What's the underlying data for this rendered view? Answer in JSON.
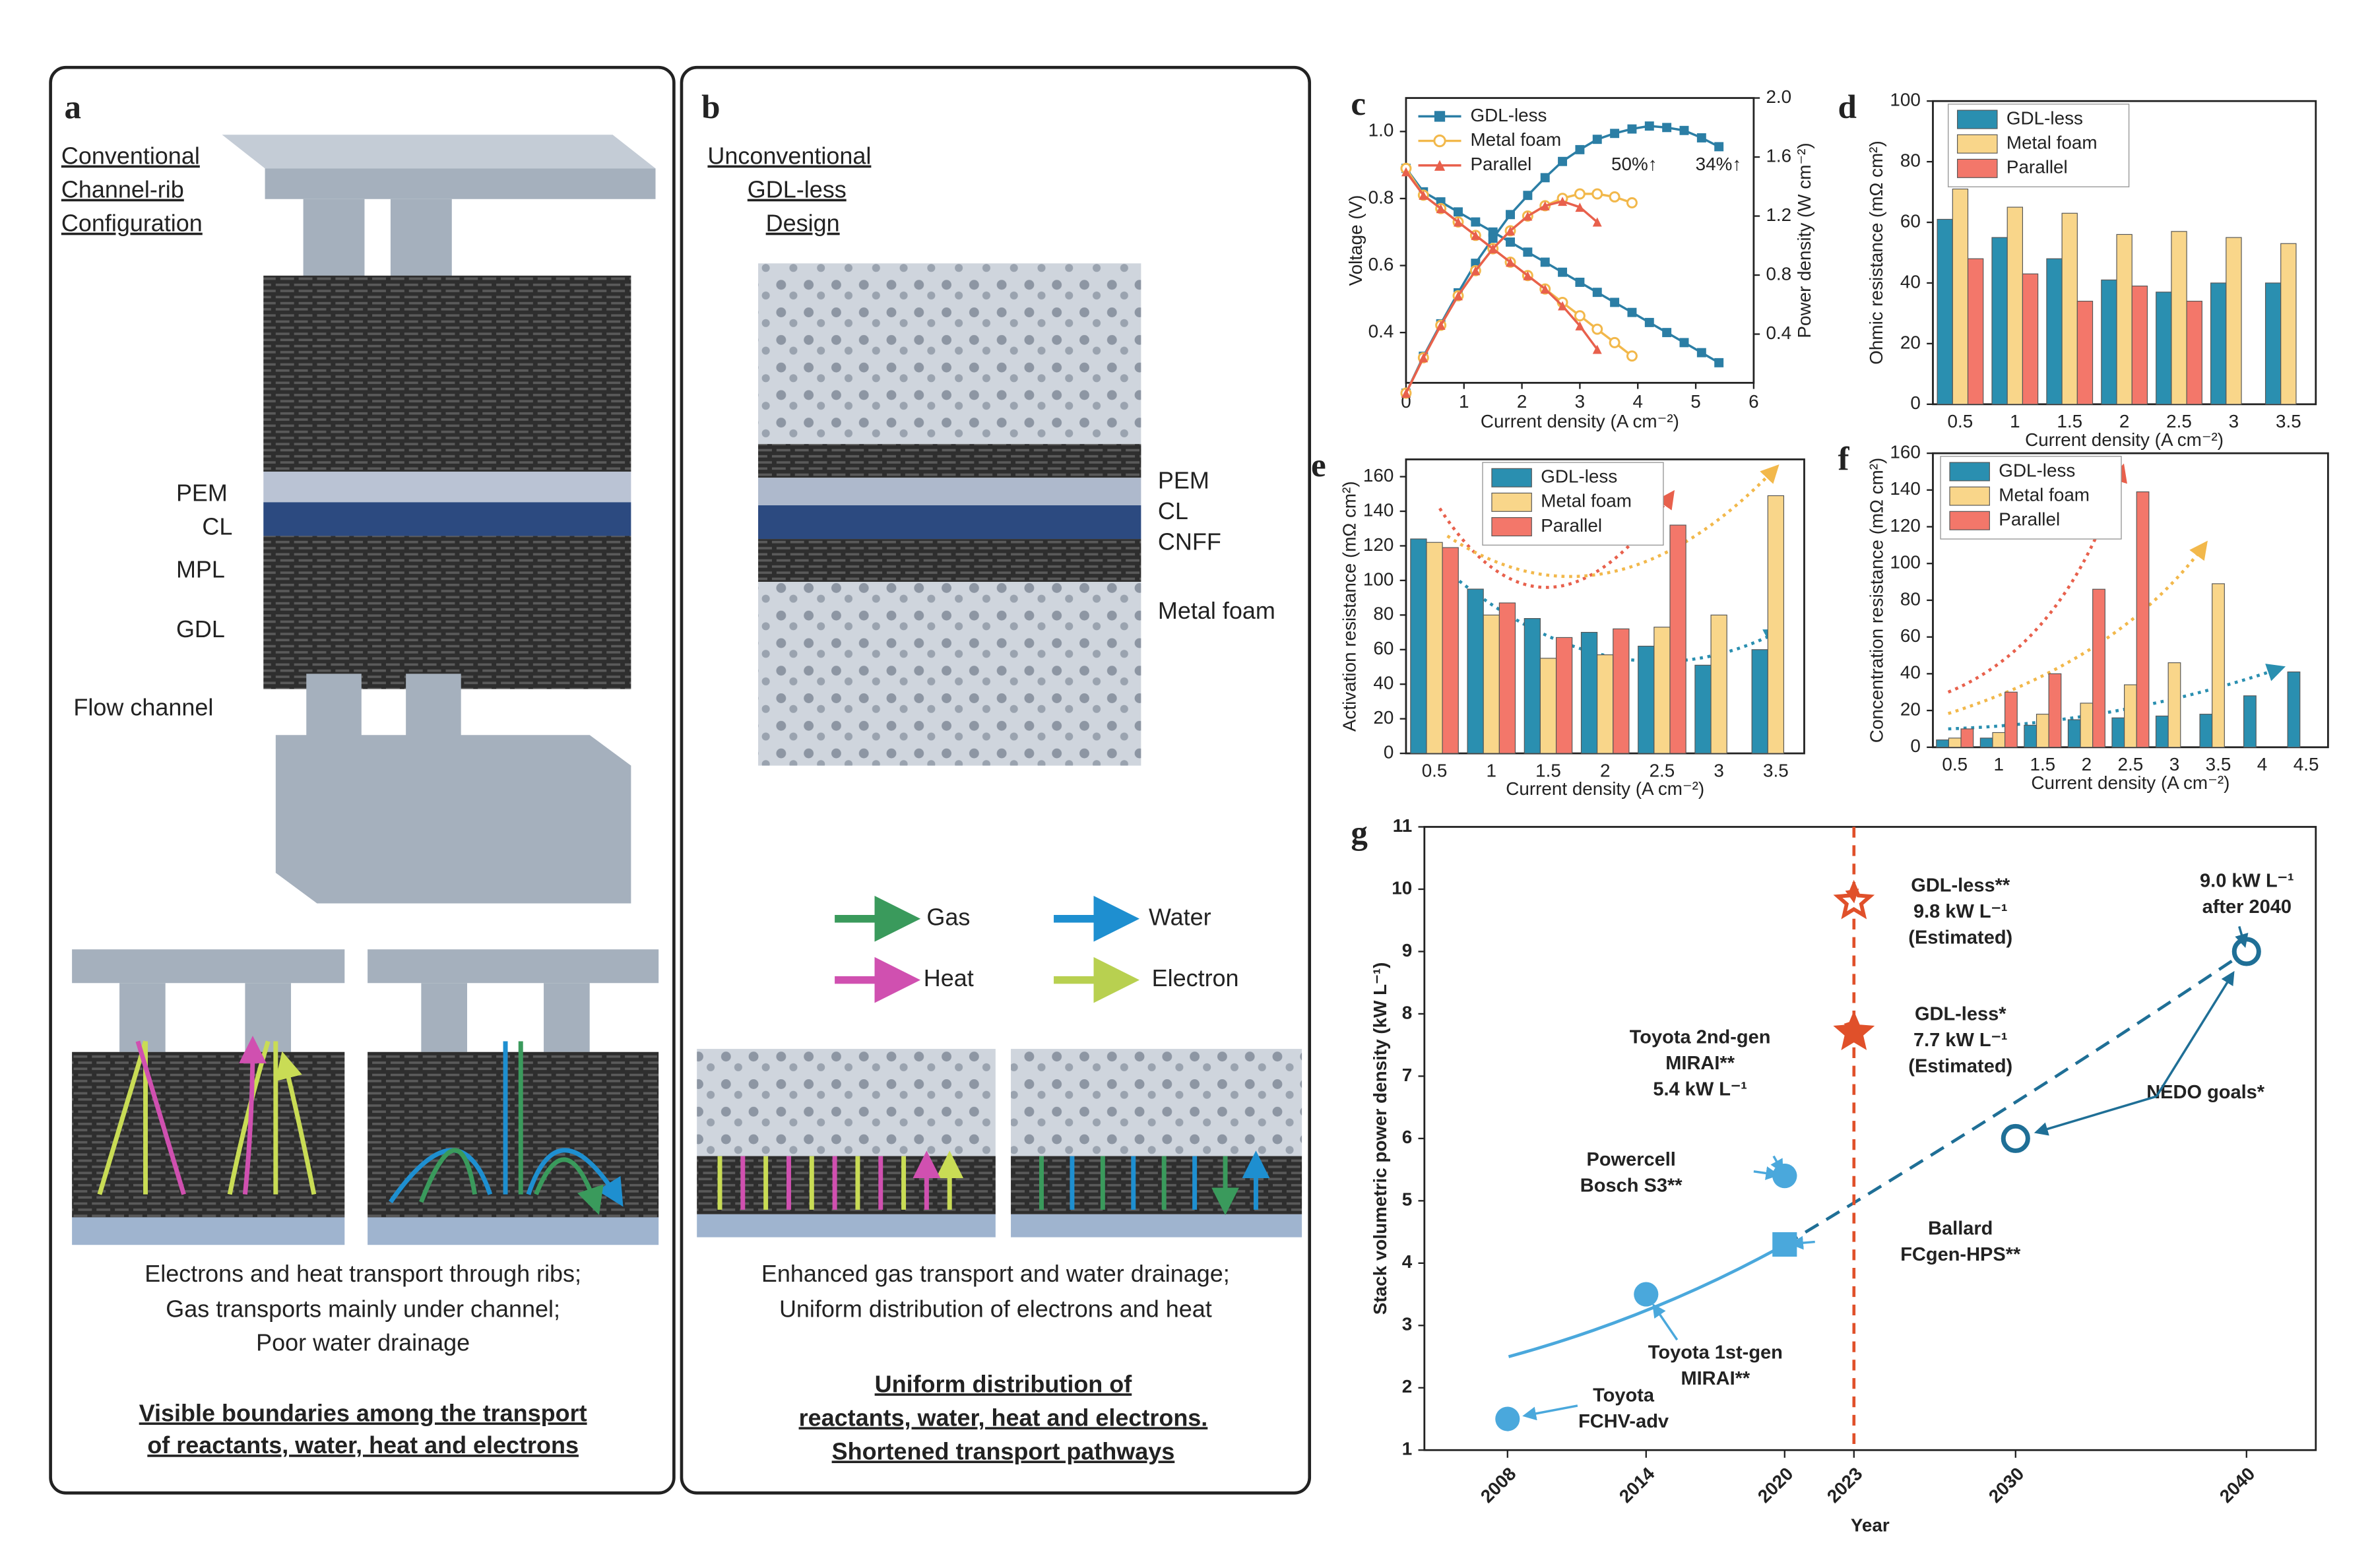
{
  "panel_a": {
    "label": "a",
    "title": [
      "Conventional",
      "Channel-rib",
      "Configuration"
    ],
    "layers": [
      "PEM",
      "CL",
      "MPL",
      "GDL",
      "Flow channel"
    ],
    "caption": [
      "Electrons and heat transport through ribs;",
      "Gas transports mainly under channel;",
      "Poor water drainage"
    ],
    "conclusion": [
      "Visible boundaries among the transport",
      "of reactants, water, heat and electrons"
    ]
  },
  "panel_b": {
    "label": "b",
    "title": [
      "Unconventional",
      "GDL-less",
      "Design"
    ],
    "layers": [
      "PEM",
      "CL",
      "CNFF",
      "Metal foam"
    ],
    "legend": [
      "Gas",
      "Water",
      "Heat",
      "Electron"
    ],
    "caption": [
      "Enhanced gas transport and water drainage;",
      "Uniform distribution of electrons and heat"
    ],
    "conclusion": [
      "Uniform distribution of",
      "reactants, water, heat and electrons.",
      "Shortened transport pathways"
    ]
  },
  "chart_data": [
    {
      "type": "line",
      "panel": "c",
      "x_label": "Current density (A cm⁻²)",
      "y_label": "Voltage (V)",
      "y2_label": "Power density (W cm⁻²)",
      "xlim": [
        0,
        6
      ],
      "xticks": [
        0,
        1,
        2,
        3,
        4,
        5,
        6
      ],
      "ylim": [
        0.25,
        1.1
      ],
      "yticks": [
        0.4,
        0.6,
        0.8,
        {
          "value": 1.0,
          "label": "1.0"
        }
      ],
      "y2lim": [
        0.07,
        2.0
      ],
      "y2ticks": [
        0.4,
        0.8,
        1.2,
        1.6,
        {
          "value": 2.0,
          "label": "2.0"
        }
      ],
      "series": [
        {
          "name": "GDL-less",
          "color": "#2b7ea5",
          "marker": "square",
          "x": [
            0,
            0.3,
            0.6,
            0.9,
            1.2,
            1.5,
            1.8,
            2.1,
            2.4,
            2.7,
            3.0,
            3.3,
            3.6,
            3.9,
            4.2,
            4.5,
            4.8,
            5.1,
            5.4
          ],
          "values": [
            0.89,
            0.82,
            0.79,
            0.76,
            0.73,
            0.7,
            0.67,
            0.64,
            0.61,
            0.58,
            0.55,
            0.52,
            0.49,
            0.46,
            0.43,
            0.4,
            0.37,
            0.34,
            0.31
          ],
          "y2_values": [
            0,
            0.25,
            0.47,
            0.68,
            0.88,
            1.05,
            1.21,
            1.34,
            1.46,
            1.57,
            1.65,
            1.72,
            1.76,
            1.79,
            1.81,
            1.8,
            1.78,
            1.73,
            1.67
          ]
        },
        {
          "name": "Metal foam",
          "color": "#f2b84b",
          "marker": "open-circle",
          "x": [
            0,
            0.3,
            0.6,
            0.9,
            1.2,
            1.5,
            1.8,
            2.1,
            2.4,
            2.7,
            3.0,
            3.3,
            3.6,
            3.9
          ],
          "values": [
            0.89,
            0.81,
            0.77,
            0.73,
            0.69,
            0.65,
            0.61,
            0.57,
            0.53,
            0.49,
            0.45,
            0.41,
            0.37,
            0.33
          ],
          "y2_values": [
            0,
            0.24,
            0.46,
            0.66,
            0.83,
            0.98,
            1.1,
            1.2,
            1.27,
            1.32,
            1.35,
            1.35,
            1.33,
            1.29
          ]
        },
        {
          "name": "Parallel",
          "color": "#e8604c",
          "marker": "triangle",
          "x": [
            0,
            0.3,
            0.6,
            0.9,
            1.2,
            1.5,
            1.8,
            2.1,
            2.4,
            2.7,
            3.0,
            3.3
          ],
          "values": [
            0.88,
            0.81,
            0.77,
            0.73,
            0.69,
            0.65,
            0.61,
            0.57,
            0.53,
            0.48,
            0.42,
            0.35
          ],
          "y2_values": [
            0,
            0.24,
            0.46,
            0.66,
            0.83,
            0.98,
            1.1,
            1.2,
            1.27,
            1.3,
            1.26,
            1.16
          ]
        }
      ],
      "annotations": [
        {
          "text": "50%↑",
          "color": "#e8604c"
        },
        {
          "text": "34%↑",
          "color": "#f2b84b"
        }
      ]
    },
    {
      "type": "bar",
      "panel": "d",
      "x_label": "Current density (A cm⁻²)",
      "y_label": "Ohmic resistance (mΩ cm²)",
      "categories": [
        "0.5",
        "1",
        "1.5",
        "2",
        "2.5",
        "3",
        "3.5"
      ],
      "ylim": [
        0,
        100
      ],
      "yticks": [
        0,
        20,
        40,
        60,
        80,
        100
      ],
      "series": [
        {
          "name": "GDL-less",
          "color": "#2a8fb0",
          "values": [
            61,
            55,
            48,
            41,
            37,
            40,
            40
          ]
        },
        {
          "name": "Metal foam",
          "color": "#f9d68a",
          "values": [
            71,
            65,
            63,
            56,
            57,
            55,
            53
          ]
        },
        {
          "name": "Parallel",
          "color": "#f3776a",
          "values": [
            48,
            43,
            34,
            39,
            34,
            null,
            null
          ]
        }
      ]
    },
    {
      "type": "bar",
      "panel": "e",
      "x_label": "Current density (A cm⁻²)",
      "y_label": "Activation resistance (mΩ cm²)",
      "categories": [
        "0.5",
        "1",
        "1.5",
        "2",
        "2.5",
        "3",
        "3.5"
      ],
      "ylim": [
        0,
        170
      ],
      "yticks": [
        0,
        20,
        40,
        60,
        80,
        100,
        120,
        140,
        160
      ],
      "series": [
        {
          "name": "GDL-less",
          "color": "#2a8fb0",
          "values": [
            124,
            95,
            78,
            70,
            62,
            51,
            60
          ]
        },
        {
          "name": "Metal foam",
          "color": "#f9d68a",
          "values": [
            122,
            80,
            55,
            57,
            73,
            80,
            149
          ]
        },
        {
          "name": "Parallel",
          "color": "#f3776a",
          "values": [
            119,
            87,
            67,
            72,
            132,
            null,
            null
          ]
        }
      ]
    },
    {
      "type": "bar",
      "panel": "f",
      "x_label": "Current density (A cm⁻²)",
      "y_label": "Concentration resistance (mΩ cm²)",
      "categories": [
        "0.5",
        "1",
        "1.5",
        "2",
        "2.5",
        "3",
        "3.5",
        "4",
        "4.5"
      ],
      "ylim": [
        0,
        160
      ],
      "yticks": [
        0,
        20,
        40,
        60,
        80,
        100,
        120,
        140,
        160
      ],
      "series": [
        {
          "name": "GDL-less",
          "color": "#2a8fb0",
          "values": [
            4,
            5,
            12,
            15,
            16,
            17,
            18,
            28,
            41
          ]
        },
        {
          "name": "Metal foam",
          "color": "#f9d68a",
          "values": [
            5,
            8,
            18,
            24,
            34,
            46,
            89,
            null,
            null
          ]
        },
        {
          "name": "Parallel",
          "color": "#f3776a",
          "values": [
            10,
            30,
            40,
            86,
            139,
            null,
            null,
            null,
            null
          ]
        }
      ]
    },
    {
      "type": "scatter",
      "panel": "g",
      "x_label": "Year",
      "y_label": "Stack volumetric power density (kW L⁻¹)",
      "xlim": [
        2004.4,
        2043
      ],
      "xticks": [
        2008,
        2014,
        2020,
        2023,
        2030,
        2040
      ],
      "ylim": [
        1,
        11
      ],
      "yticks": [
        1,
        2,
        3,
        4,
        5,
        6,
        7,
        8,
        9,
        10,
        11
      ],
      "reference_x": 2023,
      "points": [
        {
          "x": 2008,
          "y": 1.5,
          "marker": "circle",
          "color": "#4aa8dc",
          "label": [
            "Toyota",
            "FCHV-adv"
          ]
        },
        {
          "x": 2014,
          "y": 3.5,
          "marker": "circle",
          "color": "#4aa8dc",
          "label": [
            "Toyota 1st-gen",
            "MIRAI**"
          ]
        },
        {
          "x": 2020,
          "y": 5.4,
          "marker": "circle",
          "color": "#4aa8dc",
          "label": [
            "Toyota 2nd-gen",
            "MIRAI**",
            "5.4 kW L⁻¹"
          ]
        },
        {
          "x": 2020,
          "y": 5.4,
          "marker": "circle",
          "color": "#4aa8dc",
          "label": [
            "Powercell",
            "Bosch S3**"
          ]
        },
        {
          "x": 2020,
          "y": 4.3,
          "marker": "square",
          "color": "#4aa8dc",
          "label": [
            "Ballard",
            "FCgen-HPS**"
          ]
        },
        {
          "x": 2023,
          "y": 7.7,
          "marker": "star",
          "color": "#e0502a",
          "label": [
            "GDL-less*",
            "7.7 kW L⁻¹",
            "(Estimated)"
          ]
        },
        {
          "x": 2023,
          "y": 9.8,
          "marker": "open-star",
          "color": "#e0502a",
          "label": [
            "GDL-less**",
            "9.8 kW L⁻¹",
            "(Estimated)"
          ]
        },
        {
          "x": 2030,
          "y": 6.0,
          "marker": "open-circle",
          "color": "#1f6f96"
        },
        {
          "x": 2040,
          "y": 9.0,
          "marker": "open-circle",
          "color": "#1f6f96",
          "label": [
            "9.0 kW L⁻¹",
            "after 2040"
          ]
        }
      ],
      "annotation": "NEDO goals*"
    }
  ]
}
